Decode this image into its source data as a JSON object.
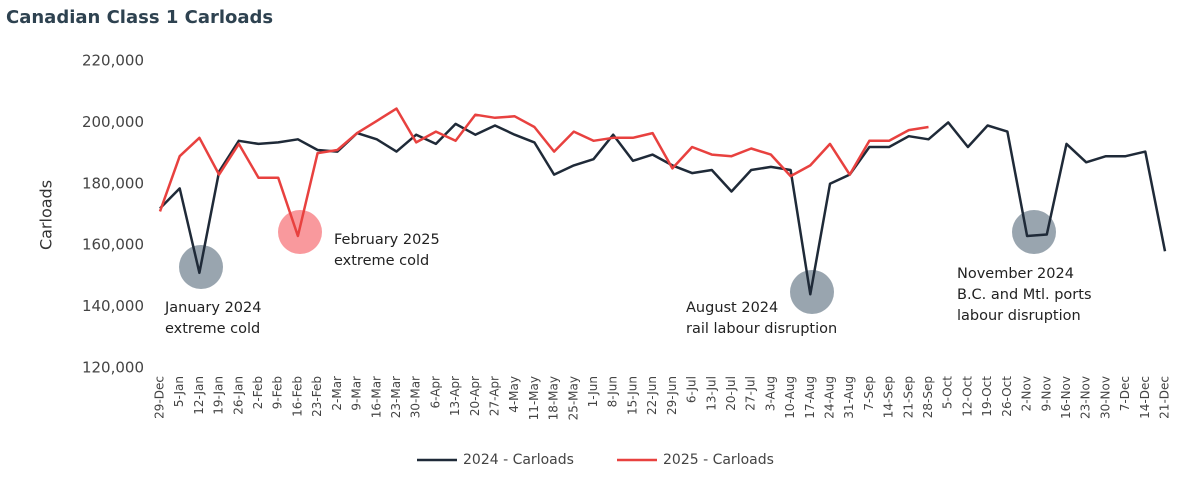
{
  "chart_data": {
    "type": "line",
    "title": "Canadian Class 1 Carloads",
    "y_label": "Carloads",
    "categories": [
      "29-Dec",
      "5-Jan",
      "12-Jan",
      "19-Jan",
      "26-Jan",
      "2-Feb",
      "9-Feb",
      "16-Feb",
      "23-Feb",
      "2-Mar",
      "9-Mar",
      "16-Mar",
      "23-Mar",
      "30-Mar",
      "6-Apr",
      "13-Apr",
      "20-Apr",
      "27-Apr",
      "4-May",
      "11-May",
      "18-May",
      "25-May",
      "1-Jun",
      "8-Jun",
      "15-Jun",
      "22-Jun",
      "29-Jun",
      "6-Jul",
      "13-Jul",
      "20-Jul",
      "27-Jul",
      "3-Aug",
      "10-Aug",
      "17-Aug",
      "24-Aug",
      "31-Aug",
      "7-Sep",
      "14-Sep",
      "21-Sep",
      "28-Sep",
      "5-Oct",
      "12-Oct",
      "19-Oct",
      "26-Oct",
      "2-Nov",
      "9-Nov",
      "16-Nov",
      "23-Nov",
      "30-Nov",
      "7-Dec",
      "14-Dec",
      "21-Dec"
    ],
    "series": [
      {
        "name": "2024 - Carloads",
        "color": "#1f2a38",
        "values": [
          172000,
          178500,
          151000,
          184000,
          194000,
          193000,
          193500,
          194500,
          191000,
          190500,
          196500,
          194500,
          190500,
          196000,
          193000,
          199500,
          196000,
          199000,
          196000,
          193500,
          183000,
          186000,
          188000,
          196000,
          187500,
          189500,
          186000,
          183500,
          184500,
          177500,
          184500,
          185500,
          184500,
          144000,
          180000,
          183000,
          192000,
          192000,
          195500,
          194500,
          200000,
          192000,
          199000,
          197000,
          163000,
          163500,
          193000,
          187000,
          189000,
          189000,
          190500,
          158000
        ]
      },
      {
        "name": "2025 - Carloads",
        "color": "#e8413f",
        "values": [
          171000,
          189000,
          195000,
          183000,
          193000,
          182000,
          182000,
          163000,
          190000,
          191000,
          196500,
          200500,
          204500,
          193500,
          197000,
          194000,
          202500,
          201500,
          202000,
          198500,
          190500,
          197000,
          194000,
          195000,
          195000,
          196500,
          185000,
          192000,
          189500,
          189000,
          191500,
          189500,
          182500,
          186000,
          193000,
          183000,
          194000,
          194000,
          197500,
          198500,
          null,
          null,
          null,
          null,
          null,
          null,
          null,
          null,
          null,
          null,
          null,
          null
        ]
      }
    ],
    "ylim": [
      120000,
      220000
    ],
    "yticks": [
      {
        "value": 120000,
        "label": "120,000"
      },
      {
        "value": 140000,
        "label": "140,000"
      },
      {
        "value": 160000,
        "label": "160,000"
      },
      {
        "value": 180000,
        "label": "180,000"
      },
      {
        "value": 200000,
        "label": "200,000"
      },
      {
        "value": 220000,
        "label": "220,000"
      }
    ],
    "annotations": [
      {
        "lines": [
          "January 2024",
          "extreme cold"
        ]
      },
      {
        "lines": [
          "February 2025",
          "extreme cold"
        ]
      },
      {
        "lines": [
          "August 2024",
          "rail labour disruption"
        ]
      },
      {
        "lines": [
          "November 2024",
          "B.C. and Mtl. ports",
          "labour disruption"
        ]
      }
    ]
  }
}
